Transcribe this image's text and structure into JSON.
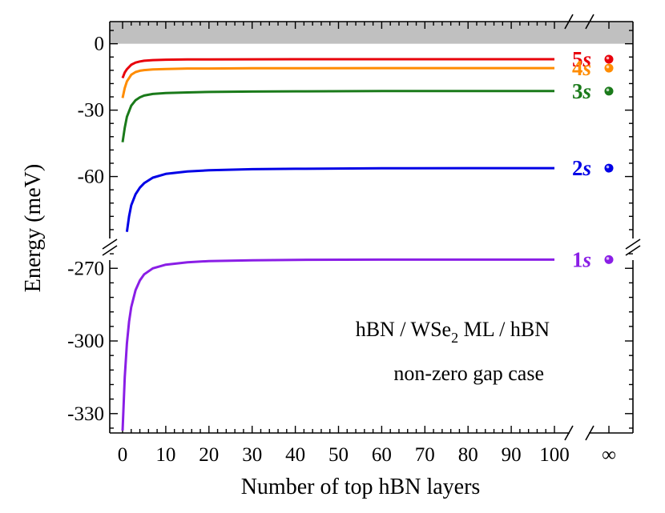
{
  "chart_data": {
    "type": "line",
    "xlabel": "Number of top hBN layers",
    "ylabel": "Energy (meV)",
    "x_ticks": [
      "0",
      "10",
      "20",
      "30",
      "40",
      "50",
      "60",
      "70",
      "80",
      "90",
      "100"
    ],
    "x_infinity_label": "∞",
    "y_ticks_upper": [
      "0",
      "-30",
      "-60"
    ],
    "y_ticks_lower": [
      "-270",
      "-300",
      "-330"
    ],
    "x_range": [
      0,
      100
    ],
    "y_range_upper": [
      -88,
      10
    ],
    "y_range_lower": [
      -338,
      -260
    ],
    "gap_region": {
      "from": 0,
      "to": 10,
      "color": "#c0c0c0"
    },
    "annotations": {
      "structure_prefix": "hBN / WSe",
      "structure_sub": "2",
      "structure_suffix": " ML / hBN",
      "case": "non-zero gap case"
    },
    "series": [
      {
        "name": "5s",
        "label_num": "5",
        "label_letter": "s",
        "color": "#e8000b",
        "points": [
          [
            0,
            -15.5
          ],
          [
            0.5,
            -13
          ],
          [
            1,
            -11.5
          ],
          [
            2,
            -9.5
          ],
          [
            3,
            -8.5
          ],
          [
            4,
            -8
          ],
          [
            5,
            -7.7
          ],
          [
            7,
            -7.4
          ],
          [
            10,
            -7.2
          ],
          [
            15,
            -7.1
          ],
          [
            20,
            -7.1
          ],
          [
            30,
            -7.05
          ],
          [
            40,
            -7
          ],
          [
            60,
            -7
          ],
          [
            80,
            -7
          ],
          [
            100,
            -7
          ]
        ],
        "infinity_value": -7
      },
      {
        "name": "4s",
        "label_num": "4",
        "label_letter": "s",
        "color": "#ff8c00",
        "points": [
          [
            0,
            -24.5
          ],
          [
            0.5,
            -20
          ],
          [
            1,
            -17
          ],
          [
            2,
            -14
          ],
          [
            3,
            -12.8
          ],
          [
            4,
            -12.2
          ],
          [
            5,
            -11.9
          ],
          [
            7,
            -11.6
          ],
          [
            10,
            -11.4
          ],
          [
            15,
            -11.2
          ],
          [
            20,
            -11.2
          ],
          [
            30,
            -11.1
          ],
          [
            40,
            -11.1
          ],
          [
            60,
            -11
          ],
          [
            80,
            -11
          ],
          [
            100,
            -11
          ]
        ],
        "infinity_value": -11
      },
      {
        "name": "3s",
        "label_num": "3",
        "label_letter": "s",
        "color": "#1a7a1a",
        "points": [
          [
            0,
            -44.5
          ],
          [
            0.5,
            -38
          ],
          [
            1,
            -33
          ],
          [
            2,
            -28
          ],
          [
            3,
            -25.5
          ],
          [
            4,
            -24.2
          ],
          [
            5,
            -23.4
          ],
          [
            7,
            -22.7
          ],
          [
            10,
            -22.3
          ],
          [
            15,
            -22
          ],
          [
            20,
            -21.8
          ],
          [
            30,
            -21.6
          ],
          [
            40,
            -21.5
          ],
          [
            60,
            -21.4
          ],
          [
            80,
            -21.4
          ],
          [
            100,
            -21.4
          ]
        ],
        "infinity_value": -21.4
      },
      {
        "name": "2s",
        "label_num": "2",
        "label_letter": "s",
        "color": "#0000e6",
        "points": [
          [
            1,
            -85
          ],
          [
            1.5,
            -78
          ],
          [
            2,
            -73
          ],
          [
            3,
            -68
          ],
          [
            4,
            -65
          ],
          [
            5,
            -63
          ],
          [
            7,
            -60.5
          ],
          [
            10,
            -58.8
          ],
          [
            15,
            -57.7
          ],
          [
            20,
            -57.2
          ],
          [
            30,
            -56.7
          ],
          [
            40,
            -56.5
          ],
          [
            60,
            -56.3
          ],
          [
            80,
            -56.2
          ],
          [
            100,
            -56.2
          ]
        ],
        "infinity_value": -56.2
      },
      {
        "name": "1s",
        "label_num": "1",
        "label_letter": "s",
        "color": "#8a1ee6",
        "points": [
          [
            0,
            -337
          ],
          [
            0.5,
            -315
          ],
          [
            1,
            -301
          ],
          [
            1.5,
            -292
          ],
          [
            2,
            -286
          ],
          [
            3,
            -279
          ],
          [
            4,
            -275
          ],
          [
            5,
            -272.5
          ],
          [
            7,
            -270
          ],
          [
            10,
            -268.5
          ],
          [
            15,
            -267.5
          ],
          [
            20,
            -267
          ],
          [
            30,
            -266.7
          ],
          [
            40,
            -266.5
          ],
          [
            60,
            -266.4
          ],
          [
            80,
            -266.4
          ],
          [
            100,
            -266.4
          ]
        ],
        "infinity_value": -266.4
      }
    ]
  }
}
